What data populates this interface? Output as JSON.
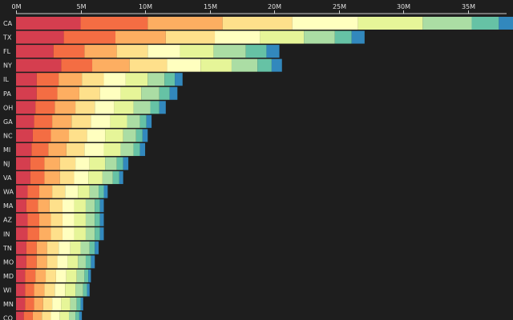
{
  "chart_data": {
    "type": "bar",
    "orientation": "horizontal",
    "stacked": true,
    "xlim": [
      0,
      38000000
    ],
    "ticks": [
      {
        "value": 0,
        "label": "0M"
      },
      {
        "value": 5000000,
        "label": "5M"
      },
      {
        "value": 10000000,
        "label": "10M"
      },
      {
        "value": 15000000,
        "label": "15M"
      },
      {
        "value": 20000000,
        "label": "20M"
      },
      {
        "value": 25000000,
        "label": "25M"
      },
      {
        "value": 30000000,
        "label": "30M"
      },
      {
        "value": 35000000,
        "label": "35M"
      }
    ],
    "categories": [
      "CA",
      "TX",
      "FL",
      "NY",
      "IL",
      "PA",
      "OH",
      "GA",
      "NC",
      "MI",
      "NJ",
      "VA",
      "WA",
      "MA",
      "AZ",
      "IN",
      "TN",
      "MO",
      "MD",
      "WI",
      "MN",
      "CO"
    ],
    "colors": [
      "#d53e4f",
      "#f46d43",
      "#fdae61",
      "#fee08b",
      "#ffffbf",
      "#e6f598",
      "#abdda4",
      "#66c2a5",
      "#3288bd"
    ],
    "series": [
      {
        "values": [
          5000000,
          3700000,
          2900000,
          3500000,
          1600000,
          1600000,
          1500000,
          1400000,
          1300000,
          1200000,
          1100000,
          1100000,
          900000,
          800000,
          900000,
          900000,
          800000,
          800000,
          700000,
          700000,
          700000,
          600000
        ]
      },
      {
        "values": [
          5200000,
          4000000,
          2400000,
          2400000,
          1700000,
          1600000,
          1500000,
          1400000,
          1400000,
          1300000,
          1100000,
          1100000,
          900000,
          900000,
          900000,
          900000,
          800000,
          800000,
          800000,
          700000,
          700000,
          700000
        ]
      },
      {
        "values": [
          5800000,
          3900000,
          2500000,
          2900000,
          1800000,
          1700000,
          1600000,
          1500000,
          1400000,
          1400000,
          1200000,
          1200000,
          1000000,
          900000,
          900000,
          900000,
          800000,
          800000,
          800000,
          800000,
          700000,
          700000
        ]
      },
      {
        "values": [
          5400000,
          3800000,
          2400000,
          2900000,
          1700000,
          1600000,
          1500000,
          1500000,
          1400000,
          1400000,
          1200000,
          1100000,
          1000000,
          1000000,
          900000,
          900000,
          900000,
          800000,
          800000,
          800000,
          700000,
          700000
        ]
      },
      {
        "values": [
          5100000,
          3500000,
          2500000,
          2600000,
          1700000,
          1600000,
          1500000,
          1500000,
          1400000,
          1500000,
          1100000,
          1100000,
          1000000,
          900000,
          900000,
          900000,
          900000,
          800000,
          800000,
          800000,
          700000,
          700000
        ]
      },
      {
        "values": [
          5000000,
          3400000,
          2600000,
          2400000,
          1700000,
          1600000,
          1500000,
          1300000,
          1400000,
          1300000,
          1200000,
          1100000,
          900000,
          900000,
          900000,
          900000,
          800000,
          800000,
          800000,
          800000,
          700000,
          700000
        ]
      },
      {
        "values": [
          3800000,
          2400000,
          2500000,
          2000000,
          1300000,
          1400000,
          1300000,
          1000000,
          1000000,
          1000000,
          900000,
          800000,
          700000,
          700000,
          700000,
          700000,
          700000,
          600000,
          600000,
          600000,
          500000,
          500000
        ]
      },
      {
        "values": [
          2100000,
          1300000,
          1600000,
          1100000,
          800000,
          800000,
          700000,
          500000,
          500000,
          500000,
          500000,
          500000,
          400000,
          400000,
          400000,
          400000,
          400000,
          400000,
          300000,
          300000,
          300000,
          300000
        ]
      },
      {
        "values": [
          1300000,
          1000000,
          1000000,
          800000,
          600000,
          600000,
          500000,
          400000,
          400000,
          400000,
          400000,
          300000,
          300000,
          300000,
          300000,
          300000,
          300000,
          300000,
          200000,
          200000,
          200000,
          200000
        ]
      }
    ]
  }
}
